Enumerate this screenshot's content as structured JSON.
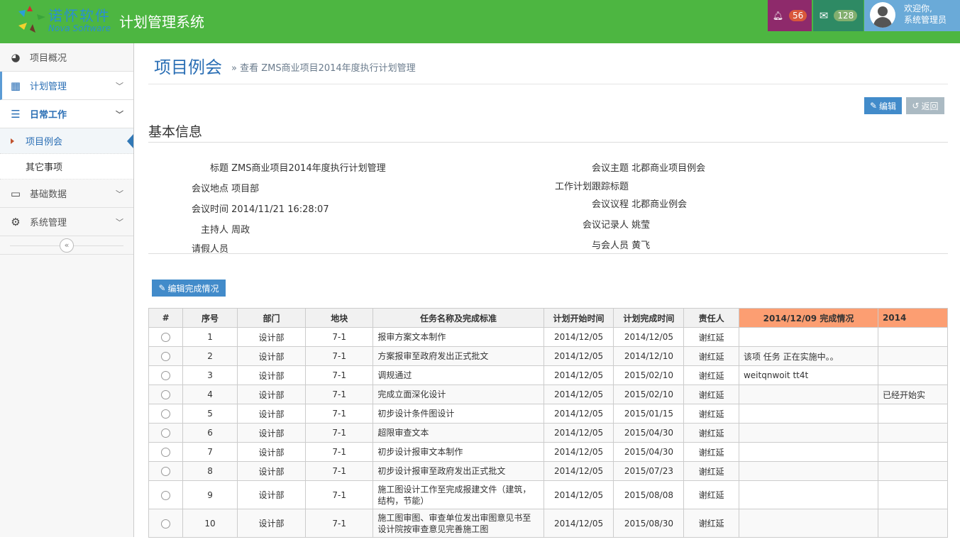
{
  "header": {
    "logo_cn": "诺怀软件",
    "logo_en": "Nova Software",
    "app_title": "计划管理系统",
    "notifications": "56",
    "messages": "128",
    "welcome": "欢迎你,",
    "username": "系统管理员",
    "colors": {
      "topbar": "#4db641",
      "notify": "#8e2a6b",
      "mail": "#2e8a64",
      "user": "#6aaad8"
    }
  },
  "sidebar": {
    "items": [
      {
        "label": "项目概况",
        "icon": "dashboard-icon"
      },
      {
        "label": "计划管理",
        "icon": "calendar-icon"
      },
      {
        "label": "日常工作",
        "icon": "list-icon"
      },
      {
        "label": "基础数据",
        "icon": "monitor-icon"
      },
      {
        "label": "系统管理",
        "icon": "gears-icon"
      }
    ],
    "sub": [
      "项目例会",
      "其它事项"
    ]
  },
  "page": {
    "title": "项目例会",
    "subtitle": "» 查看 ZMS商业项目2014年度执行计划管理",
    "edit": "编辑",
    "back": "返回",
    "section": "基本信息",
    "edit_completion": "编辑完成情况"
  },
  "info": {
    "left": [
      {
        "label": "标题",
        "value": "ZMS商业项目2014年度执行计划管理"
      },
      {
        "label": "会议地点",
        "value": "项目部"
      },
      {
        "label": "会议时间",
        "value": "2014/11/21 16:28:07"
      },
      {
        "label": "主持人",
        "value": "周政"
      },
      {
        "label": "请假人员",
        "value": ""
      }
    ],
    "right": [
      {
        "label": "会议主题",
        "value": "北郡商业项目例会"
      },
      {
        "label": "工作计划跟踪标题",
        "value": ""
      },
      {
        "label": "会议议程",
        "value": "北郡商业例会"
      },
      {
        "label": "会议记录人",
        "value": "姚莹"
      },
      {
        "label": "与会人员",
        "value": "黄飞"
      }
    ]
  },
  "table": {
    "headers": [
      "#",
      "序号",
      "部门",
      "地块",
      "任务名称及完成标准",
      "计划开始时间",
      "计划完成时间",
      "责任人",
      "2014/12/09 完成情况",
      "2014"
    ],
    "rows": [
      [
        "1",
        "设计部",
        "7-1",
        "报审方案文本制作",
        "2014/12/05",
        "2014/12/05",
        "谢红延",
        "",
        ""
      ],
      [
        "2",
        "设计部",
        "7-1",
        "方案报审至政府发出正式批文",
        "2014/12/05",
        "2014/12/10",
        "谢红延",
        "该项 任务 正在实施中。。",
        ""
      ],
      [
        "3",
        "设计部",
        "7-1",
        "调规通过",
        "2014/12/05",
        "2015/02/10",
        "谢红延",
        "weitqnwoit tt4t",
        ""
      ],
      [
        "4",
        "设计部",
        "7-1",
        "完成立面深化设计",
        "2014/12/05",
        "2015/02/10",
        "谢红延",
        "",
        "已经开始实"
      ],
      [
        "5",
        "设计部",
        "7-1",
        "初步设计条件图设计",
        "2014/12/05",
        "2015/01/15",
        "谢红延",
        "",
        ""
      ],
      [
        "6",
        "设计部",
        "7-1",
        "超限审查文本",
        "2014/12/05",
        "2015/04/30",
        "谢红延",
        "",
        ""
      ],
      [
        "7",
        "设计部",
        "7-1",
        "初步设计报审文本制作",
        "2014/12/05",
        "2015/04/30",
        "谢红延",
        "",
        ""
      ],
      [
        "8",
        "设计部",
        "7-1",
        "初步设计报审至政府发出正式批文",
        "2014/12/05",
        "2015/07/23",
        "谢红延",
        "",
        ""
      ],
      [
        "9",
        "设计部",
        "7-1",
        "施工图设计工作至完成报建文件（建筑，结构，节能）",
        "2014/12/05",
        "2015/08/08",
        "谢红延",
        "",
        ""
      ],
      [
        "10",
        "设计部",
        "7-1",
        "施工图审图、审查单位发出审图意见书至设计院按审查意见完善施工图",
        "2014/12/05",
        "2015/08/30",
        "谢红延",
        "",
        ""
      ]
    ]
  }
}
